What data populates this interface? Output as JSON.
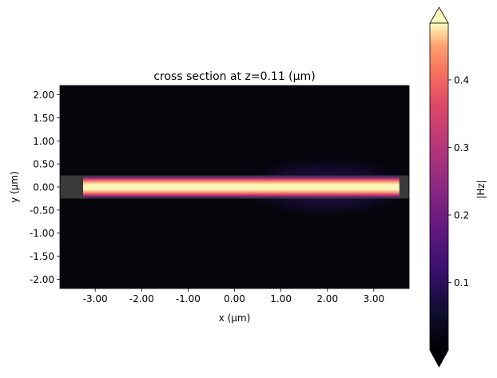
{
  "chart_data": {
    "type": "heatmap",
    "title": "cross section at z=0.11 (µm)",
    "xlabel": "x (µm)",
    "ylabel": "y (µm)",
    "xlim": [
      -3.76,
      3.76
    ],
    "ylim": [
      -2.2,
      2.2
    ],
    "xticks": [
      -3,
      -2,
      -1,
      0,
      1,
      2,
      3
    ],
    "xtick_labels": [
      "-3.00",
      "-2.00",
      "-1.00",
      "0.00",
      "1.00",
      "2.00",
      "3.00"
    ],
    "yticks": [
      2,
      1.5,
      1,
      0.5,
      0,
      -0.5,
      -1,
      -1.5,
      -2
    ],
    "ytick_labels": [
      "2.00",
      "1.50",
      "1.00",
      "0.50",
      "0.00",
      "-0.50",
      "-1.00",
      "-1.50",
      "-2.00"
    ],
    "colormap": "magma",
    "field": {
      "waveguide_x": [
        -3.26,
        3.55
      ],
      "waveguide_y": [
        -0.22,
        0.22
      ],
      "structure_y": [
        -0.25,
        0.25
      ],
      "glow_x": [
        0.0,
        3.6
      ]
    },
    "colorbar": {
      "label": "|Hz|",
      "range": [
        0.0,
        0.484
      ],
      "extend": "both",
      "ticks": [
        0.1,
        0.2,
        0.3,
        0.4
      ],
      "tick_labels": [
        "0.1",
        "0.2",
        "0.3",
        "0.4"
      ]
    }
  }
}
